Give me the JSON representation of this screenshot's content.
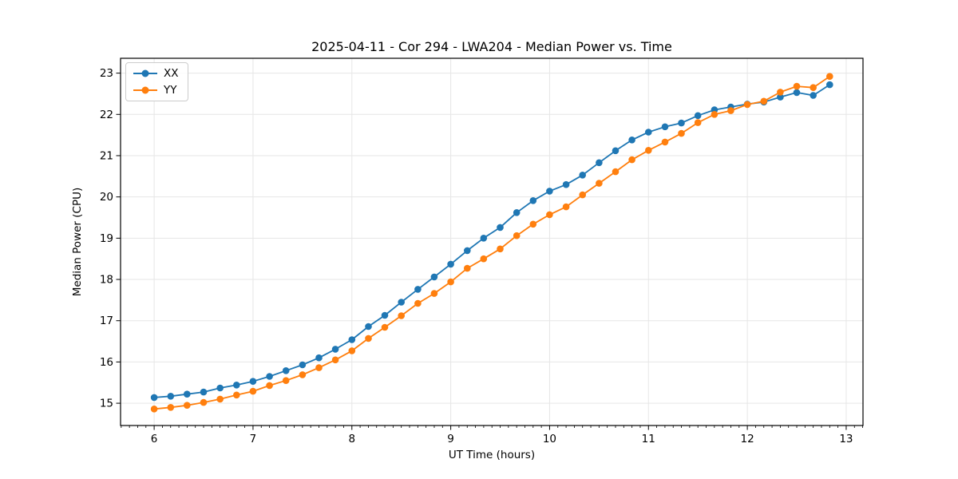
{
  "chart_data": {
    "type": "line",
    "title": "2025-04-11 - Cor 294 - LWA204 - Median Power vs. Time",
    "xlabel": "UT Time (hours)",
    "ylabel": "Median Power (CPU)",
    "xlim": [
      5.66,
      13.17
    ],
    "ylim": [
      14.46,
      23.36
    ],
    "xticks": [
      6,
      7,
      8,
      9,
      10,
      11,
      12,
      13
    ],
    "yticks": [
      15,
      16,
      17,
      18,
      19,
      20,
      21,
      22,
      23
    ],
    "x_minor_step": 0.0833333,
    "grid": true,
    "grid_color": "#e6e6e6",
    "spine_color": "#000000",
    "legend_position": "upper left",
    "x": [
      6.0,
      6.167,
      6.333,
      6.5,
      6.667,
      6.833,
      7.0,
      7.167,
      7.333,
      7.5,
      7.667,
      7.833,
      8.0,
      8.167,
      8.333,
      8.5,
      8.667,
      8.833,
      9.0,
      9.167,
      9.333,
      9.5,
      9.667,
      9.833,
      10.0,
      10.167,
      10.333,
      10.5,
      10.667,
      10.833,
      11.0,
      11.167,
      11.333,
      11.5,
      11.667,
      11.833,
      12.0,
      12.167,
      12.333,
      12.5,
      12.667,
      12.833
    ],
    "series": [
      {
        "name": "XX",
        "color": "#1f77b4",
        "values": [
          15.14,
          15.17,
          15.22,
          15.27,
          15.37,
          15.44,
          15.53,
          15.65,
          15.79,
          15.93,
          16.1,
          16.31,
          16.54,
          16.86,
          17.13,
          17.45,
          17.76,
          18.06,
          18.37,
          18.7,
          19.0,
          19.26,
          19.62,
          19.91,
          20.14,
          20.3,
          20.53,
          20.83,
          21.12,
          21.38,
          21.57,
          21.7,
          21.79,
          21.97,
          22.11,
          22.18,
          22.25,
          22.3,
          22.42,
          22.53,
          22.46,
          22.72
        ]
      },
      {
        "name": "YY",
        "color": "#ff7f0e",
        "values": [
          14.86,
          14.9,
          14.95,
          15.02,
          15.1,
          15.2,
          15.29,
          15.43,
          15.55,
          15.69,
          15.86,
          16.05,
          16.27,
          16.57,
          16.84,
          17.12,
          17.42,
          17.66,
          17.94,
          18.27,
          18.5,
          18.74,
          19.06,
          19.34,
          19.57,
          19.76,
          20.05,
          20.33,
          20.61,
          20.9,
          21.13,
          21.33,
          21.54,
          21.8,
          22.0,
          22.09,
          22.24,
          22.32,
          22.54,
          22.68,
          22.65,
          22.92
        ]
      }
    ]
  }
}
